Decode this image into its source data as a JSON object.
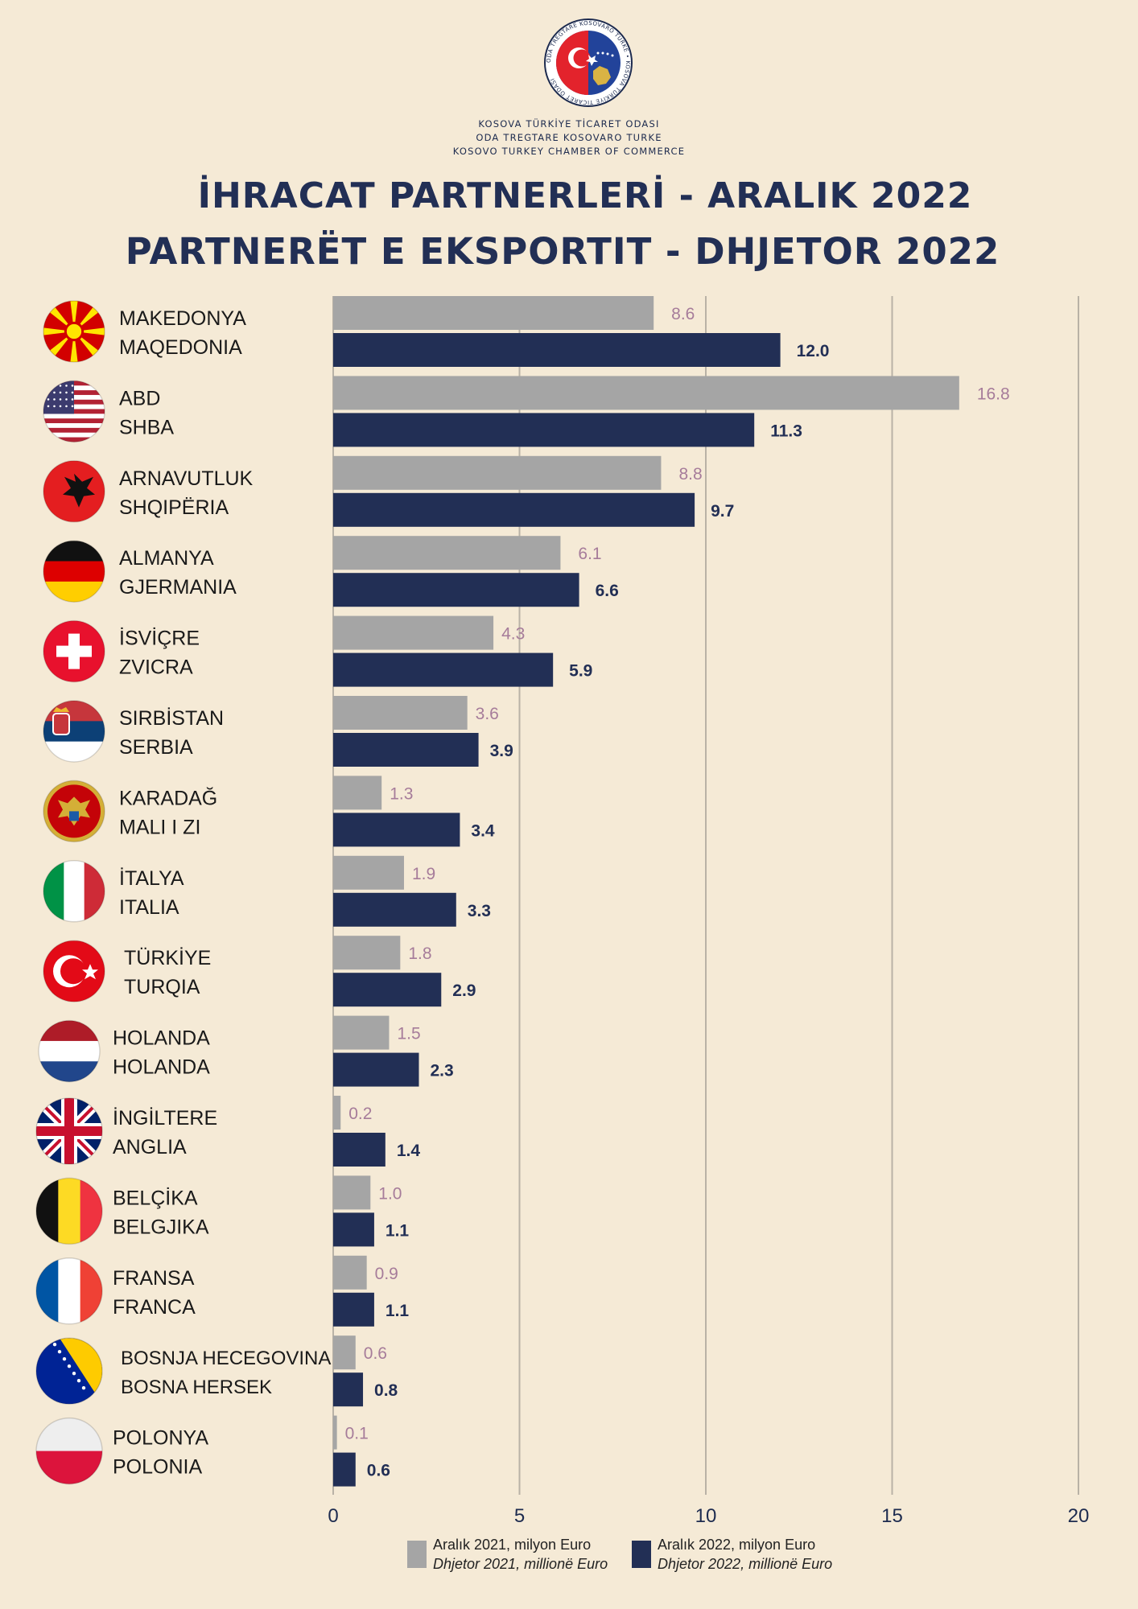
{
  "header": {
    "org_lines": [
      "KOSOVA TÜRKİYE TİCARET ODASI",
      "ODA TREGTARE KOSOVARO TURKE",
      "KOSOVO TURKEY CHAMBER OF COMMERCE"
    ],
    "logo_text": "ODA TREGTARE KOSOVARO TURKE • KOSOVA TÜRKİYE TİCARET ODASI",
    "title_tr": "İHRACAT PARTNERLERİ - ARALIK 2022",
    "title_sq": "PARTNERËT E EKSPORTIT - DHJETOR 2022"
  },
  "colors": {
    "background": "#f5ead6",
    "series_2021": "#a5a5a5",
    "series_2022": "#222f55",
    "label_2021": "#a67c9a",
    "label_2022": "#222f55",
    "grid": "#b9b2a6"
  },
  "chart_data": {
    "type": "bar",
    "orientation": "horizontal",
    "categories": [
      {
        "tr": "MAKEDONYA",
        "sq": "MAQEDONIA",
        "flag": "north-macedonia-flag-icon"
      },
      {
        "tr": "ABD",
        "sq": "SHBA",
        "flag": "usa-flag-icon"
      },
      {
        "tr": "ARNAVUTLUK",
        "sq": "SHQIPËRIA",
        "flag": "albania-flag-icon"
      },
      {
        "tr": "ALMANYA",
        "sq": "GJERMANIA",
        "flag": "germany-flag-icon"
      },
      {
        "tr": "İSVİÇRE",
        "sq": "ZVICRA",
        "flag": "switzerland-flag-icon"
      },
      {
        "tr": "SIRBİSTAN",
        "sq": "SERBIA",
        "flag": "serbia-flag-icon"
      },
      {
        "tr": "KARADAĞ",
        "sq": "MALI I ZI",
        "flag": "montenegro-flag-icon"
      },
      {
        "tr": "İTALYA",
        "sq": "ITALIA",
        "flag": "italy-flag-icon"
      },
      {
        "tr": "TÜRKİYE",
        "sq": "TURQIA",
        "flag": "turkey-flag-icon"
      },
      {
        "tr": "HOLANDA",
        "sq": "HOLANDA",
        "flag": "netherlands-flag-icon"
      },
      {
        "tr": "İNGİLTERE",
        "sq": "ANGLIA",
        "flag": "uk-flag-icon"
      },
      {
        "tr": "BELÇİKA",
        "sq": "BELGJIKA",
        "flag": "belgium-flag-icon"
      },
      {
        "tr": "FRANSA",
        "sq": "FRANCA",
        "flag": "france-flag-icon"
      },
      {
        "tr": "BOSNA HERSEK",
        "sq": "BOSNJA HECEGOVINA",
        "flag": "bosnia-flag-icon"
      },
      {
        "tr": "POLONYA",
        "sq": "POLONIA",
        "flag": "poland-flag-icon"
      }
    ],
    "series": [
      {
        "name": "Aralık  2021, milyon Euro",
        "name_sq": "Dhjetor  2021, millionë Euro",
        "values": [
          8.6,
          16.8,
          8.8,
          6.1,
          4.3,
          3.6,
          1.3,
          1.9,
          1.8,
          1.5,
          0.2,
          1.0,
          0.9,
          0.6,
          0.1
        ],
        "labels": [
          "8.6",
          "16.8",
          "8.8",
          "6.1",
          "4.3",
          "3.6",
          "1.3",
          "1.9",
          "1.8",
          "1.5",
          "0.2",
          "1.0",
          "0.9",
          "0.6",
          "0.1"
        ]
      },
      {
        "name": "Aralık 2022, milyon Euro",
        "name_sq": "Dhjetor 2022, millionë Euro",
        "values": [
          12.0,
          11.3,
          9.7,
          6.6,
          5.9,
          3.9,
          3.4,
          3.3,
          2.9,
          2.3,
          1.4,
          1.1,
          1.1,
          0.8,
          0.6
        ],
        "labels": [
          "12.0",
          "11.3",
          "9.7",
          "6.6",
          "5.9",
          "3.9",
          "3.4",
          "3.3",
          "2.9",
          "2.3",
          "1.4",
          "1.1",
          "1.1",
          "0.8",
          "0.6"
        ]
      }
    ],
    "xlim": [
      0,
      20
    ],
    "xticks": [
      "0",
      "5",
      "10",
      "15",
      "20"
    ],
    "grid": true,
    "legend_position": "bottom"
  }
}
